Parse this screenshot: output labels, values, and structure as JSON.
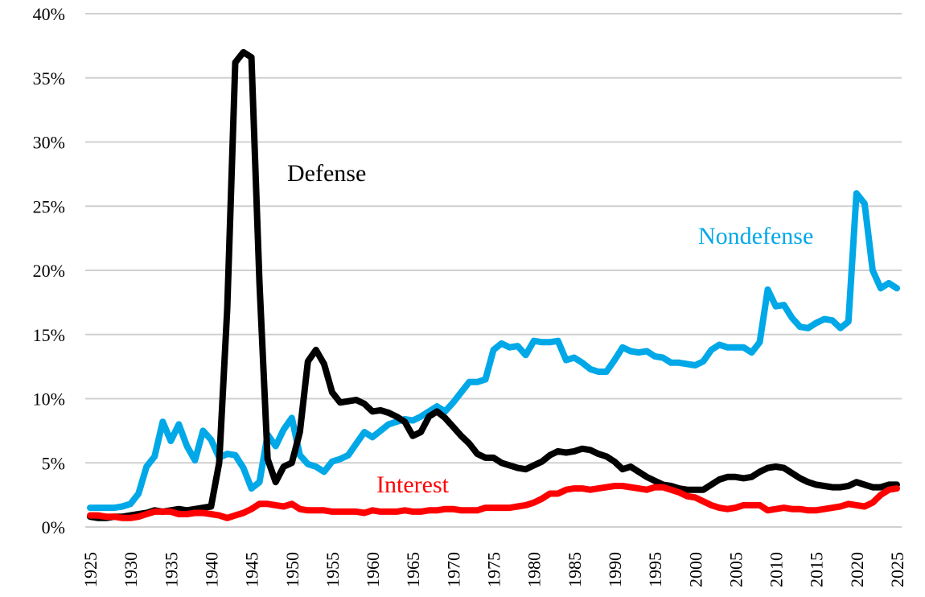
{
  "chart_data": {
    "type": "line",
    "title": "",
    "xlabel": "",
    "ylabel": "",
    "xlim": [
      1925,
      2025
    ],
    "ylim": [
      0,
      40
    ],
    "y_ticks": [
      0,
      5,
      10,
      15,
      20,
      25,
      30,
      35,
      40
    ],
    "y_tick_labels": [
      "0%",
      "5%",
      "10%",
      "15%",
      "20%",
      "25%",
      "30%",
      "35%",
      "40%"
    ],
    "x_ticks": [
      1925,
      1930,
      1935,
      1940,
      1945,
      1950,
      1955,
      1960,
      1965,
      1970,
      1975,
      1980,
      1985,
      1990,
      1995,
      2000,
      2005,
      2010,
      2015,
      2020,
      2025
    ],
    "x_tick_labels": [
      "1925",
      "1930",
      "1935",
      "1940",
      "1945",
      "1950",
      "1955",
      "1960",
      "1965",
      "1970",
      "1975",
      "1980",
      "1985",
      "1990",
      "1995",
      "2000",
      "2005",
      "2010",
      "2015",
      "2020",
      "2025"
    ],
    "grid": "horizontal",
    "legend": "none (inline series labels)",
    "x_start": 1925,
    "series": [
      {
        "name": "Nondefense",
        "label": "Nondefense",
        "color": "#00a8e8",
        "values": [
          1.5,
          1.5,
          1.5,
          1.5,
          1.6,
          1.8,
          2.6,
          4.7,
          5.5,
          8.2,
          6.7,
          8.0,
          6.3,
          5.2,
          7.5,
          6.8,
          5.4,
          5.7,
          5.6,
          4.6,
          3.0,
          3.5,
          7.2,
          6.3,
          7.6,
          8.5,
          5.6,
          4.9,
          4.7,
          4.3,
          5.1,
          5.3,
          5.6,
          6.5,
          7.4,
          7.0,
          7.5,
          8.0,
          8.2,
          8.4,
          8.3,
          8.6,
          9.0,
          9.4,
          9.0,
          9.7,
          10.5,
          11.3,
          11.3,
          11.5,
          13.8,
          14.3,
          14.0,
          14.1,
          13.4,
          14.5,
          14.4,
          14.4,
          14.5,
          13.0,
          13.2,
          12.8,
          12.3,
          12.1,
          12.1,
          13.0,
          14.0,
          13.7,
          13.6,
          13.7,
          13.3,
          13.2,
          12.8,
          12.8,
          12.7,
          12.6,
          12.9,
          13.8,
          14.2,
          14.0,
          14.0,
          14.0,
          13.6,
          14.4,
          18.5,
          17.2,
          17.3,
          16.3,
          15.6,
          15.5,
          15.9,
          16.2,
          16.1,
          15.5,
          16.0,
          26.0,
          25.2,
          20.0,
          18.6,
          19.0,
          18.6
        ]
      },
      {
        "name": "Defense",
        "label": "Defense",
        "color": "#000000",
        "values": [
          0.8,
          0.7,
          0.7,
          0.8,
          0.8,
          0.9,
          1.0,
          1.1,
          1.3,
          1.2,
          1.3,
          1.4,
          1.3,
          1.4,
          1.5,
          1.6,
          5.0,
          17.0,
          36.2,
          37.0,
          36.6,
          19.0,
          5.3,
          3.5,
          4.7,
          5.0,
          7.4,
          12.9,
          13.8,
          12.7,
          10.5,
          9.7,
          9.8,
          9.9,
          9.6,
          9.0,
          9.1,
          8.9,
          8.6,
          8.2,
          7.1,
          7.4,
          8.6,
          9.0,
          8.5,
          7.8,
          7.1,
          6.5,
          5.7,
          5.4,
          5.4,
          5.0,
          4.8,
          4.6,
          4.5,
          4.8,
          5.1,
          5.6,
          5.9,
          5.8,
          5.9,
          6.1,
          6.0,
          5.7,
          5.5,
          5.1,
          4.5,
          4.7,
          4.3,
          3.9,
          3.6,
          3.3,
          3.2,
          3.0,
          2.9,
          2.9,
          2.9,
          3.3,
          3.7,
          3.9,
          3.9,
          3.8,
          3.9,
          4.3,
          4.6,
          4.7,
          4.6,
          4.2,
          3.8,
          3.5,
          3.3,
          3.2,
          3.1,
          3.1,
          3.2,
          3.5,
          3.3,
          3.1,
          3.1,
          3.3,
          3.3
        ]
      },
      {
        "name": "Interest",
        "label": "Interest",
        "color": "#ff0000",
        "values": [
          0.9,
          0.9,
          0.8,
          0.8,
          0.7,
          0.7,
          0.8,
          1.0,
          1.2,
          1.2,
          1.2,
          1.0,
          1.0,
          1.1,
          1.1,
          1.0,
          0.9,
          0.7,
          0.9,
          1.1,
          1.4,
          1.8,
          1.8,
          1.7,
          1.6,
          1.8,
          1.4,
          1.3,
          1.3,
          1.3,
          1.2,
          1.2,
          1.2,
          1.2,
          1.1,
          1.3,
          1.2,
          1.2,
          1.2,
          1.3,
          1.2,
          1.2,
          1.3,
          1.3,
          1.4,
          1.4,
          1.3,
          1.3,
          1.3,
          1.5,
          1.5,
          1.5,
          1.5,
          1.6,
          1.7,
          1.9,
          2.2,
          2.6,
          2.6,
          2.9,
          3.0,
          3.0,
          2.9,
          3.0,
          3.1,
          3.2,
          3.2,
          3.1,
          3.0,
          2.9,
          3.1,
          3.1,
          2.9,
          2.7,
          2.4,
          2.3,
          2.0,
          1.7,
          1.5,
          1.4,
          1.5,
          1.7,
          1.7,
          1.7,
          1.3,
          1.4,
          1.5,
          1.4,
          1.4,
          1.3,
          1.3,
          1.4,
          1.5,
          1.6,
          1.8,
          1.7,
          1.6,
          1.9,
          2.5,
          2.9,
          3.0
        ]
      }
    ]
  }
}
